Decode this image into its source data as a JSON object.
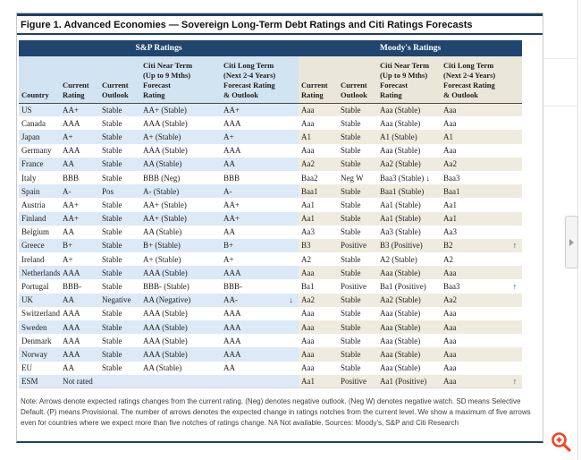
{
  "page": {
    "title": "Figure 1. Advanced Economies — Sovereign Long-Term Debt Ratings and Citi Ratings Forecasts",
    "footnote": "Note: Arrows denote expected ratings changes from the current rating. (Neg) denotes negative outlook. (Neg W) denotes negative watch. SD means Selective Default. (P) means Provisional. The number of arrows denotes the expected change in ratings notches from the current level. We show a maximum of five arrows even for countries where we expect more than five notches of ratings change. NA Not available. Sources: Moody's, S&P and Citi Research"
  },
  "table": {
    "group_headers": {
      "sp": "S&P Ratings",
      "moodys": "Moody's Ratings"
    },
    "column_headers": {
      "country": "Country",
      "current_rating": "Current\nRating",
      "current_outlook": "Current\nOutlook",
      "citi_near_term": "Citi Near Term\n(Up to 9 Mths)\nForecast\nRating",
      "citi_long_term": "Citi Long Term\n(Next 2-4 Years)\nForecast Rating\n& Outlook"
    },
    "rows": [
      {
        "country": "US",
        "sp_rating": "AA+",
        "sp_outlook": "Stable",
        "sp_near": "AA+ (Stable)",
        "sp_long": "AA+",
        "sp_long_arrow": "",
        "md_rating": "Aaa",
        "md_outlook": "Stable",
        "md_near": "Aaa (Stable)",
        "md_long": "Aaa",
        "md_long_arrow": ""
      },
      {
        "country": "Canada",
        "sp_rating": "AAA",
        "sp_outlook": "Stable",
        "sp_near": "AAA (Stable)",
        "sp_long": "AAA",
        "sp_long_arrow": "",
        "md_rating": "Aaa",
        "md_outlook": "Stable",
        "md_near": "Aaa (Stable)",
        "md_long": "Aaa",
        "md_long_arrow": ""
      },
      {
        "country": "Japan",
        "sp_rating": "A+",
        "sp_outlook": "Stable",
        "sp_near": "A+ (Stable)",
        "sp_long": "A+",
        "sp_long_arrow": "",
        "md_rating": "A1",
        "md_outlook": "Stable",
        "md_near": "A1 (Stable)",
        "md_long": "A1",
        "md_long_arrow": ""
      },
      {
        "country": "Germany",
        "sp_rating": "AAA",
        "sp_outlook": "Stable",
        "sp_near": "AAA (Stable)",
        "sp_long": "AAA",
        "sp_long_arrow": "",
        "md_rating": "Aaa",
        "md_outlook": "Stable",
        "md_near": "Aaa (Stable)",
        "md_long": "Aaa",
        "md_long_arrow": ""
      },
      {
        "country": "France",
        "sp_rating": "AA",
        "sp_outlook": "Stable",
        "sp_near": "AA (Stable)",
        "sp_long": "AA",
        "sp_long_arrow": "",
        "md_rating": "Aa2",
        "md_outlook": "Stable",
        "md_near": "Aa2 (Stable)",
        "md_long": "Aa2",
        "md_long_arrow": ""
      },
      {
        "country": "Italy",
        "sp_rating": "BBB",
        "sp_outlook": "Stable",
        "sp_near": "BBB (Neg)",
        "sp_long": "BBB",
        "sp_long_arrow": "",
        "md_rating": "Baa2",
        "md_outlook": "Neg W",
        "md_near": "Baa3 (Stable) ↓",
        "md_long": "Baa3",
        "md_long_arrow": ""
      },
      {
        "country": "Spain",
        "sp_rating": "A-",
        "sp_outlook": "Pos",
        "sp_near": "A- (Stable)",
        "sp_long": "A-",
        "sp_long_arrow": "",
        "md_rating": "Baa1",
        "md_outlook": "Stable",
        "md_near": "Baa1 (Stable)",
        "md_long": "Baa1",
        "md_long_arrow": ""
      },
      {
        "country": "Austria",
        "sp_rating": "AA+",
        "sp_outlook": "Stable",
        "sp_near": "AA+ (Stable)",
        "sp_long": "AA+",
        "sp_long_arrow": "",
        "md_rating": "Aa1",
        "md_outlook": "Stable",
        "md_near": "Aa1 (Stable)",
        "md_long": "Aa1",
        "md_long_arrow": ""
      },
      {
        "country": "Finland",
        "sp_rating": "AA+",
        "sp_outlook": "Stable",
        "sp_near": "AA+ (Stable)",
        "sp_long": "AA+",
        "sp_long_arrow": "",
        "md_rating": "Aa1",
        "md_outlook": "Stable",
        "md_near": "Aa1 (Stable)",
        "md_long": "Aa1",
        "md_long_arrow": ""
      },
      {
        "country": "Belgium",
        "sp_rating": "AA",
        "sp_outlook": "Stable",
        "sp_near": "AA (Stable)",
        "sp_long": "AA",
        "sp_long_arrow": "",
        "md_rating": "Aa3",
        "md_outlook": "Stable",
        "md_near": "Aa3 (Stable)",
        "md_long": "Aa3",
        "md_long_arrow": ""
      },
      {
        "country": "Greece",
        "sp_rating": "B+",
        "sp_outlook": "Stable",
        "sp_near": "B+ (Stable)",
        "sp_long": "B+",
        "sp_long_arrow": "",
        "md_rating": "B3",
        "md_outlook": "Positive",
        "md_near": "B3 (Positive)",
        "md_long": "B2",
        "md_long_arrow": "↑"
      },
      {
        "country": "Ireland",
        "sp_rating": "A+",
        "sp_outlook": "Stable",
        "sp_near": "A+ (Stable)",
        "sp_long": "A+",
        "sp_long_arrow": "",
        "md_rating": "A2",
        "md_outlook": "Stable",
        "md_near": "A2 (Stable)",
        "md_long": "A2",
        "md_long_arrow": ""
      },
      {
        "country": "Netherlands",
        "sp_rating": "AAA",
        "sp_outlook": "Stable",
        "sp_near": "AAA (Stable)",
        "sp_long": "AAA",
        "sp_long_arrow": "",
        "md_rating": "Aaa",
        "md_outlook": "Stable",
        "md_near": "Aaa (Stable)",
        "md_long": "Aaa",
        "md_long_arrow": ""
      },
      {
        "country": "Portugal",
        "sp_rating": "BBB-",
        "sp_outlook": "Stable",
        "sp_near": "BBB- (Stable)",
        "sp_long": "BBB-",
        "sp_long_arrow": "",
        "md_rating": "Ba1",
        "md_outlook": "Positive",
        "md_near": "Ba1 (Positive)",
        "md_long": "Baa3",
        "md_long_arrow": "↑"
      },
      {
        "country": "UK",
        "sp_rating": "AA",
        "sp_outlook": "Negative",
        "sp_near": "AA (Negative)",
        "sp_long": "AA-",
        "sp_long_arrow": "↓",
        "md_rating": "Aa2",
        "md_outlook": "Stable",
        "md_near": "Aa2 (Stable)",
        "md_long": "Aa2",
        "md_long_arrow": ""
      },
      {
        "country": "Switzerland",
        "sp_rating": "AAA",
        "sp_outlook": "Stable",
        "sp_near": "AAA (Stable)",
        "sp_long": "AAA",
        "sp_long_arrow": "",
        "md_rating": "Aaa",
        "md_outlook": "Stable",
        "md_near": "Aaa (Stable)",
        "md_long": "Aaa",
        "md_long_arrow": ""
      },
      {
        "country": "Sweden",
        "sp_rating": "AAA",
        "sp_outlook": "Stable",
        "sp_near": "AAA (Stable)",
        "sp_long": "AAA",
        "sp_long_arrow": "",
        "md_rating": "Aaa",
        "md_outlook": "Stable",
        "md_near": "Aaa (Stable)",
        "md_long": "Aaa",
        "md_long_arrow": ""
      },
      {
        "country": "Denmark",
        "sp_rating": "AAA",
        "sp_outlook": "Stable",
        "sp_near": "AAA (Stable)",
        "sp_long": "AAA",
        "sp_long_arrow": "",
        "md_rating": "Aaa",
        "md_outlook": "Stable",
        "md_near": "Aaa (Stable)",
        "md_long": "Aaa",
        "md_long_arrow": ""
      },
      {
        "country": "Norway",
        "sp_rating": "AAA",
        "sp_outlook": "Stable",
        "sp_near": "AAA (Stable)",
        "sp_long": "AAA",
        "sp_long_arrow": "",
        "md_rating": "Aaa",
        "md_outlook": "Stable",
        "md_near": "Aaa (Stable)",
        "md_long": "Aaa",
        "md_long_arrow": ""
      },
      {
        "country": "EU",
        "sp_rating": "AA",
        "sp_outlook": "Stable",
        "sp_near": "AA (Stable)",
        "sp_long": "AA",
        "sp_long_arrow": "",
        "md_rating": "Aaa",
        "md_outlook": "Stable",
        "md_near": "Aaa (Stable)",
        "md_long": "Aaa",
        "md_long_arrow": ""
      },
      {
        "country": "ESM",
        "sp_rating": "Not rated",
        "sp_outlook": "",
        "sp_near": "",
        "sp_long": "",
        "sp_long_arrow": "",
        "md_rating": "Aa1",
        "md_outlook": "Positive",
        "md_near": "Aa1 (Positive)",
        "md_long": "Aaa",
        "md_long_arrow": "↑"
      }
    ]
  },
  "colors": {
    "navy": "#20456e",
    "sp_stripe": "#dceaf7",
    "moodys_stripe": "#efecdf",
    "accent_orange": "#ee4723"
  }
}
